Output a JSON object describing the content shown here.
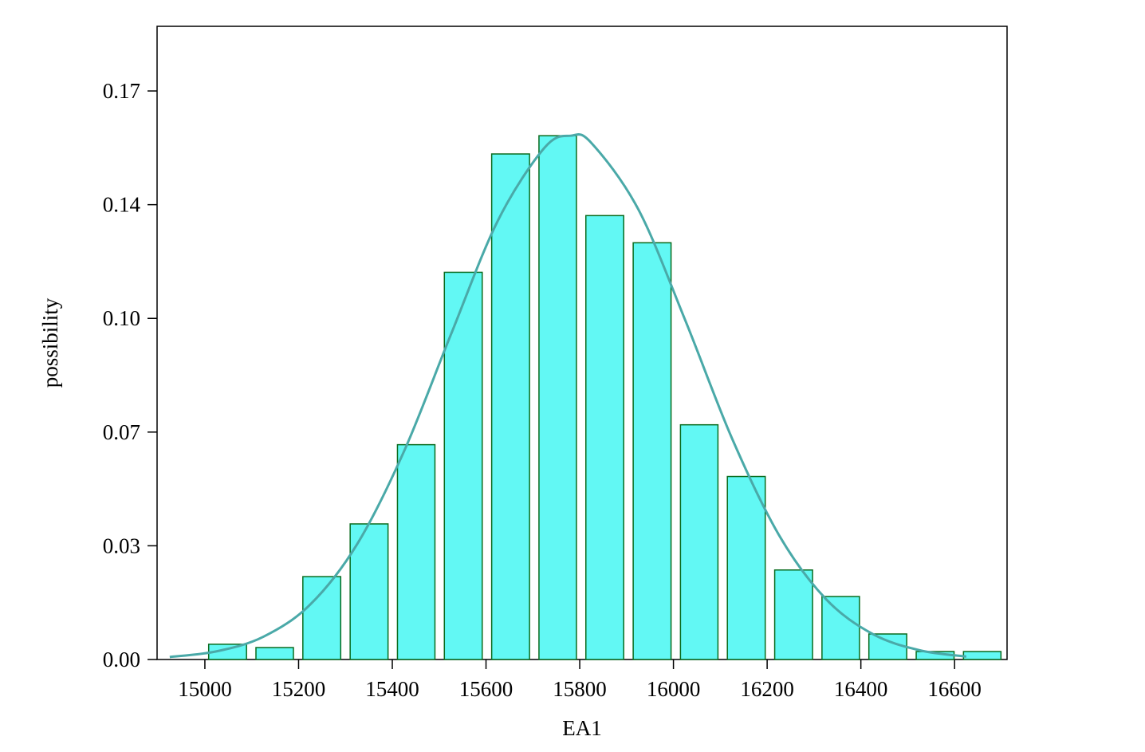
{
  "chart_data": {
    "type": "histogram",
    "xlabel": "EA1",
    "ylabel": "possibility",
    "bins": [
      14998,
      15099,
      15199,
      15300,
      15401,
      15501,
      15602,
      15703,
      15803,
      15904,
      16005,
      16105,
      16206,
      16307,
      16407,
      16508,
      16609,
      16709
    ],
    "values": [
      0.0046,
      0.0036,
      0.025,
      0.0409,
      0.0648,
      0.1168,
      0.1525,
      0.158,
      0.1339,
      0.1257,
      0.0708,
      0.0552,
      0.027,
      0.019,
      0.0077,
      0.0024,
      0.0024
    ],
    "color": "#62f8f4",
    "edgecolor": "#0a6b1e",
    "fit": {
      "type": "line",
      "color": "#4aa9a8",
      "x": [
        14925,
        15025,
        15125,
        15225,
        15325,
        15425,
        15525,
        15625,
        15725,
        15781,
        15825,
        15925,
        16025,
        16125,
        16225,
        16325,
        16425,
        16525,
        16625
      ],
      "values": [
        0.00076,
        0.00246,
        0.00687,
        0.0166,
        0.0348,
        0.0628,
        0.098,
        0.1323,
        0.1544,
        0.158,
        0.1558,
        0.1358,
        0.1024,
        0.0667,
        0.0376,
        0.0183,
        0.0077,
        0.0028,
        0.00088
      ]
    },
    "xlim": [
      14898,
      16712
    ],
    "ylim": [
      0,
      0.191
    ],
    "xticks": [
      15000,
      15200,
      15400,
      15600,
      15800,
      16000,
      16200,
      16400,
      16600
    ],
    "yticks": [
      {
        "value": 0,
        "label": "0.00"
      },
      {
        "value": 0.0343,
        "label": "0.03"
      },
      {
        "value": 0.0686,
        "label": "0.07"
      },
      {
        "value": 0.1029,
        "label": "0.10"
      },
      {
        "value": 0.1372,
        "label": "0.14"
      },
      {
        "value": 0.1715,
        "label": "0.17"
      }
    ]
  }
}
